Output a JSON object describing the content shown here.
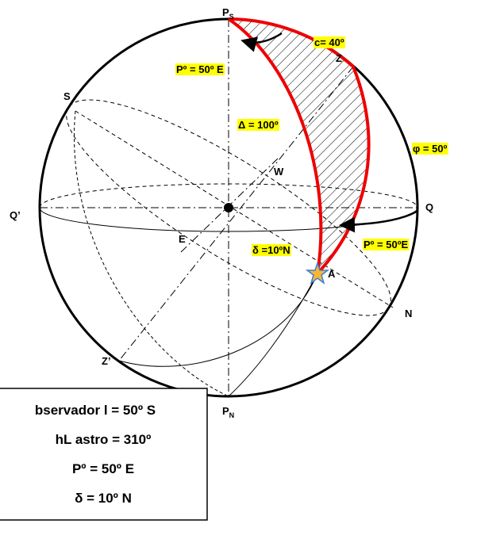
{
  "labels": {
    "ps": {
      "main": "P",
      "sub": "S"
    },
    "c": "c= 40º",
    "z": "Z",
    "p_top": "Pº = 50º E",
    "s": "S",
    "delta_cap": "Δ = 100º",
    "phi": "φ = 50º",
    "w": "W",
    "q_prime": "Q’",
    "q": "Q",
    "e": "E",
    "p_eq": "Pº = 50ºE",
    "dec": "δ =10ºN",
    "a": "A",
    "n": "N",
    "z_prime": "Z’",
    "pn": {
      "main": "P",
      "sub": "N"
    }
  },
  "box": {
    "lines": [
      "bservador  l = 50º S",
      "hL astro = 310º",
      "Pº = 50º E",
      "δ = 10º N"
    ]
  }
}
